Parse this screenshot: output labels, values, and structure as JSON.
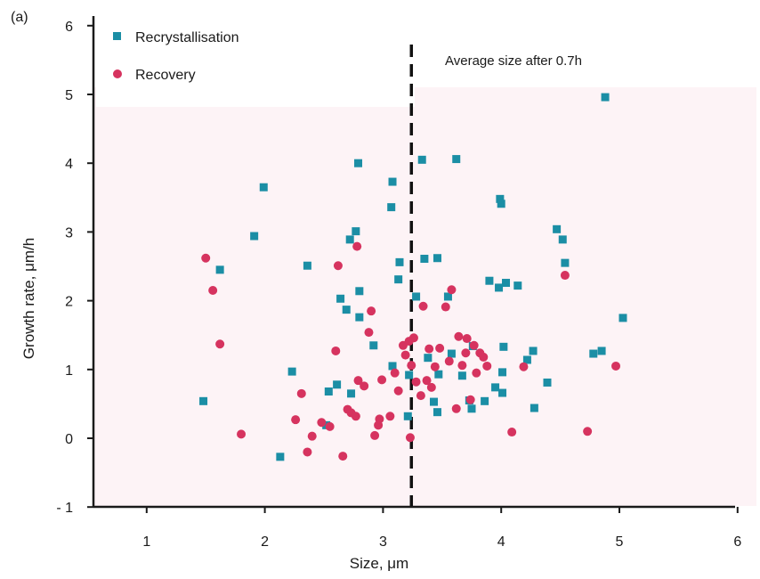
{
  "chart_data": {
    "type": "scatter",
    "panel_label": "(a)",
    "xlabel": "Size, μm",
    "ylabel": "Growth rate, μm/h",
    "xlim": [
      0.5,
      6.2
    ],
    "ylim": [
      -1,
      6
    ],
    "x_ticks": [
      "1",
      "2",
      "3",
      "4",
      "5",
      "6"
    ],
    "y_ticks": [
      "6",
      "5",
      "4",
      "3",
      "2",
      "1",
      "0",
      "- 1"
    ],
    "grid": false,
    "legend_placement": "top-left",
    "reference_line": {
      "x": 3.24,
      "label": "Average size after 0.7h",
      "style": "dashed"
    },
    "series": [
      {
        "name": "Recrystallisation",
        "marker": "square",
        "color": "#1b8ea5",
        "points": [
          [
            4.88,
            4.96
          ],
          [
            1.99,
            3.65
          ],
          [
            1.91,
            2.94
          ],
          [
            1.62,
            2.45
          ],
          [
            1.48,
            0.54
          ],
          [
            2.13,
            -0.27
          ],
          [
            2.23,
            0.97
          ],
          [
            2.36,
            2.51
          ],
          [
            2.52,
            0.19
          ],
          [
            2.54,
            0.68
          ],
          [
            2.61,
            0.78
          ],
          [
            2.64,
            2.03
          ],
          [
            2.69,
            1.87
          ],
          [
            2.72,
            2.89
          ],
          [
            2.73,
            0.65
          ],
          [
            2.77,
            3.01
          ],
          [
            2.79,
            4.0
          ],
          [
            2.8,
            2.14
          ],
          [
            2.8,
            1.76
          ],
          [
            2.92,
            1.35
          ],
          [
            3.08,
            3.73
          ],
          [
            3.07,
            3.36
          ],
          [
            3.08,
            1.05
          ],
          [
            3.14,
            2.56
          ],
          [
            3.13,
            2.31
          ],
          [
            3.21,
            0.32
          ],
          [
            3.22,
            0.92
          ],
          [
            3.28,
            2.06
          ],
          [
            3.33,
            4.05
          ],
          [
            3.35,
            2.61
          ],
          [
            3.38,
            1.17
          ],
          [
            3.43,
            0.53
          ],
          [
            3.46,
            2.62
          ],
          [
            3.46,
            0.38
          ],
          [
            3.47,
            0.93
          ],
          [
            3.55,
            2.06
          ],
          [
            3.58,
            1.23
          ],
          [
            3.62,
            4.06
          ],
          [
            3.67,
            0.91
          ],
          [
            3.73,
            0.55
          ],
          [
            3.75,
            0.43
          ],
          [
            3.76,
            1.34
          ],
          [
            3.86,
            0.54
          ],
          [
            3.9,
            2.29
          ],
          [
            3.95,
            0.74
          ],
          [
            3.98,
            2.19
          ],
          [
            3.99,
            3.48
          ],
          [
            4.0,
            3.41
          ],
          [
            4.01,
            0.96
          ],
          [
            4.01,
            0.66
          ],
          [
            4.02,
            1.33
          ],
          [
            4.04,
            2.26
          ],
          [
            4.14,
            2.22
          ],
          [
            4.22,
            1.14
          ],
          [
            4.27,
            1.27
          ],
          [
            4.28,
            0.44
          ],
          [
            4.39,
            0.81
          ],
          [
            4.47,
            3.04
          ],
          [
            4.52,
            2.89
          ],
          [
            4.54,
            2.55
          ],
          [
            4.78,
            1.23
          ],
          [
            4.85,
            1.27
          ],
          [
            5.03,
            1.75
          ]
        ]
      },
      {
        "name": "Recovery",
        "marker": "circle",
        "color": "#d6335f",
        "points": [
          [
            1.5,
            2.62
          ],
          [
            1.56,
            2.15
          ],
          [
            1.62,
            1.37
          ],
          [
            1.8,
            0.06
          ],
          [
            2.26,
            0.27
          ],
          [
            2.31,
            0.65
          ],
          [
            2.36,
            -0.2
          ],
          [
            2.4,
            0.03
          ],
          [
            2.48,
            0.23
          ],
          [
            2.55,
            0.17
          ],
          [
            2.6,
            1.27
          ],
          [
            2.62,
            2.51
          ],
          [
            2.66,
            -0.26
          ],
          [
            2.7,
            0.42
          ],
          [
            2.73,
            0.37
          ],
          [
            2.77,
            0.32
          ],
          [
            2.78,
            2.79
          ],
          [
            2.79,
            0.84
          ],
          [
            2.84,
            0.76
          ],
          [
            2.88,
            1.54
          ],
          [
            2.9,
            1.85
          ],
          [
            2.93,
            0.04
          ],
          [
            2.96,
            0.19
          ],
          [
            2.97,
            0.28
          ],
          [
            2.99,
            0.85
          ],
          [
            3.06,
            0.32
          ],
          [
            3.1,
            0.95
          ],
          [
            3.13,
            0.69
          ],
          [
            3.17,
            1.35
          ],
          [
            3.19,
            1.21
          ],
          [
            3.22,
            1.41
          ],
          [
            3.23,
            0.01
          ],
          [
            3.24,
            1.06
          ],
          [
            3.26,
            1.46
          ],
          [
            3.28,
            0.82
          ],
          [
            3.32,
            0.62
          ],
          [
            3.34,
            1.92
          ],
          [
            3.37,
            0.84
          ],
          [
            3.39,
            1.3
          ],
          [
            3.41,
            0.74
          ],
          [
            3.44,
            1.04
          ],
          [
            3.48,
            1.31
          ],
          [
            3.53,
            1.91
          ],
          [
            3.56,
            1.12
          ],
          [
            3.58,
            2.16
          ],
          [
            3.62,
            0.43
          ],
          [
            3.64,
            1.48
          ],
          [
            3.67,
            1.06
          ],
          [
            3.7,
            1.24
          ],
          [
            3.71,
            1.45
          ],
          [
            3.74,
            0.56
          ],
          [
            3.77,
            1.35
          ],
          [
            3.79,
            0.95
          ],
          [
            3.82,
            1.24
          ],
          [
            3.85,
            1.18
          ],
          [
            3.88,
            1.05
          ],
          [
            4.09,
            0.09
          ],
          [
            4.19,
            1.04
          ],
          [
            4.54,
            2.37
          ],
          [
            4.73,
            0.1
          ],
          [
            4.97,
            1.05
          ]
        ]
      }
    ]
  }
}
